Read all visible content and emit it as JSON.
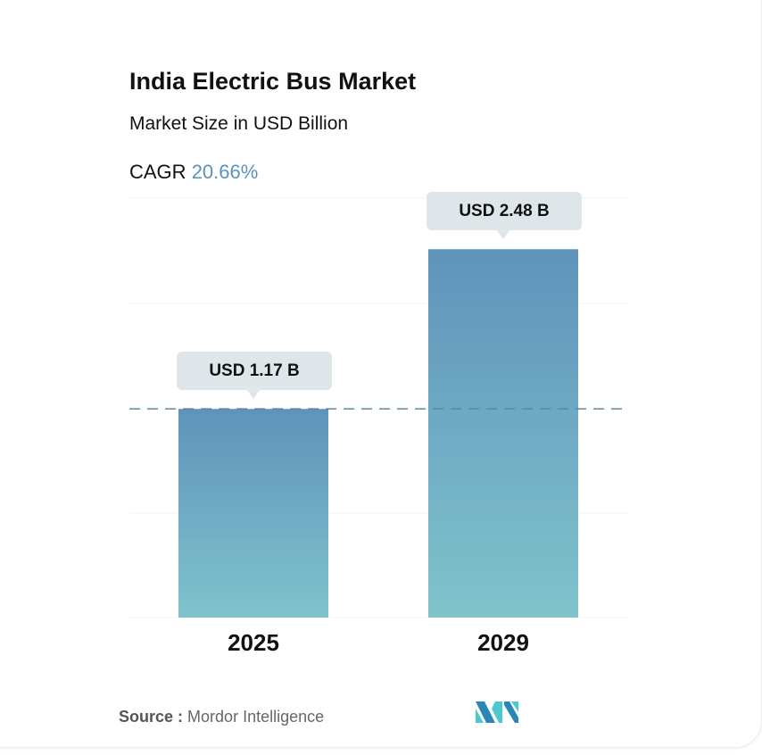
{
  "chart_data": {
    "type": "bar",
    "title": "India Electric Bus Market",
    "subtitle": "Market Size in USD Billion",
    "cagr_label": "CAGR",
    "cagr_value": "20.66%",
    "categories": [
      "2025",
      "2029"
    ],
    "values": [
      1.17,
      2.48
    ],
    "data_labels": [
      "USD 1.17 B",
      "USD 2.48 B"
    ],
    "xlabel": "",
    "ylabel": "",
    "grid": true,
    "colors": {
      "bar_top": "#5f93bb",
      "bar_bottom": "#80c3cb",
      "cagr": "#5b93bd",
      "reference_line": "#5b87a8"
    }
  },
  "footer": {
    "source_label": "Source :",
    "source_value": "Mordor Intelligence",
    "logo_text": "MI"
  }
}
